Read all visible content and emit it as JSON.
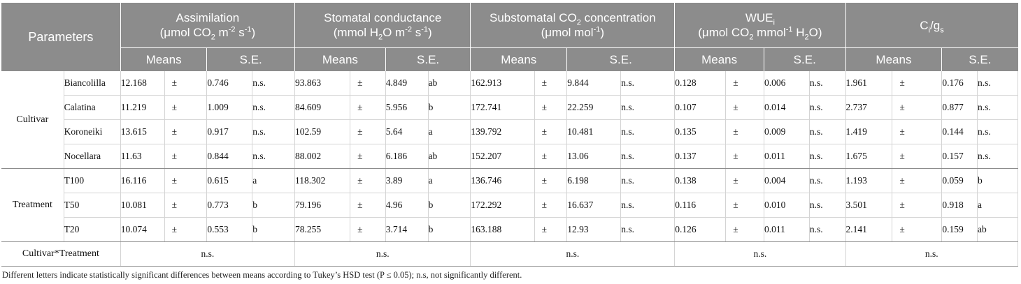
{
  "header": {
    "parameters_label": "Parameters",
    "columns": [
      {
        "title": "Assimilation",
        "unit_parts": [
          "(μmol CO",
          "2",
          " m",
          "-2",
          " s",
          "-1",
          ")"
        ]
      },
      {
        "title": "Stomatal conductance",
        "unit_parts": [
          "(mmol H",
          "2",
          "O m",
          "-2",
          " s",
          "-1",
          ")"
        ]
      },
      {
        "title": "Substomatal CO",
        "title_sub": "2",
        "title_tail": " concentration",
        "unit": "(μmol mol",
        "unit_sup": "-1",
        "unit_tail": ")"
      },
      {
        "title": "WUE",
        "title_sub": "i",
        "unit_parts": [
          "(μmol CO",
          "2",
          " mmol",
          "-1",
          " H",
          "2",
          "O)"
        ]
      },
      {
        "title": "C",
        "title_sub": "i",
        "title_mid": "/g",
        "title_sub2": "s"
      }
    ],
    "means_label": "Means",
    "se_label": "S.E."
  },
  "groups": [
    {
      "name": "Cultivar",
      "rows": [
        {
          "label": "Biancolilla",
          "values": [
            [
              "12.168",
              "±",
              "0.746",
              "n.s."
            ],
            [
              "93.863",
              "±",
              "4.849",
              "ab"
            ],
            [
              "162.913",
              "±",
              "9.844",
              "n.s."
            ],
            [
              "0.128",
              "±",
              "0.006",
              "n.s."
            ],
            [
              "1.961",
              "±",
              "0.176",
              "n.s."
            ]
          ]
        },
        {
          "label": "Calatina",
          "values": [
            [
              "11.219",
              "±",
              "1.009",
              "n.s."
            ],
            [
              "84.609",
              "±",
              "5.956",
              "b"
            ],
            [
              "172.741",
              "±",
              "22.259",
              "n.s."
            ],
            [
              "0.107",
              "±",
              "0.014",
              "n.s."
            ],
            [
              "2.737",
              "±",
              "0.877",
              "n.s."
            ]
          ]
        },
        {
          "label": "Koroneiki",
          "values": [
            [
              "13.615",
              "±",
              "0.917",
              "n.s."
            ],
            [
              "102.59",
              "±",
              "5.64",
              "a"
            ],
            [
              "139.792",
              "±",
              "10.481",
              "n.s."
            ],
            [
              "0.135",
              "±",
              "0.009",
              "n.s."
            ],
            [
              "1.419",
              "±",
              "0.144",
              "n.s."
            ]
          ]
        },
        {
          "label": "Nocellara",
          "values": [
            [
              "11.63",
              "±",
              "0.844",
              "n.s."
            ],
            [
              "88.002",
              "±",
              "6.186",
              "ab"
            ],
            [
              "152.207",
              "±",
              "13.06",
              "n.s."
            ],
            [
              "0.137",
              "±",
              "0.011",
              "n.s."
            ],
            [
              "1.675",
              "±",
              "0.157",
              "n.s."
            ]
          ]
        }
      ]
    },
    {
      "name": "Treatment",
      "rows": [
        {
          "label": "T100",
          "values": [
            [
              "16.116",
              "±",
              "0.615",
              "a"
            ],
            [
              "118.302",
              "±",
              "3.89",
              "a"
            ],
            [
              "136.746",
              "±",
              "6.198",
              "n.s."
            ],
            [
              "0.138",
              "±",
              "0.004",
              "n.s."
            ],
            [
              "1.193",
              "±",
              "0.059",
              "b"
            ]
          ]
        },
        {
          "label": "T50",
          "values": [
            [
              "10.081",
              "±",
              "0.773",
              "b"
            ],
            [
              "79.196",
              "±",
              "4.96",
              "b"
            ],
            [
              "172.292",
              "±",
              "16.637",
              "n.s."
            ],
            [
              "0.116",
              "±",
              "0.010",
              "n.s."
            ],
            [
              "3.501",
              "±",
              "0.918",
              "a"
            ]
          ]
        },
        {
          "label": "T20",
          "values": [
            [
              "10.074",
              "±",
              "0.553",
              "b"
            ],
            [
              "78.255",
              "±",
              "3.714",
              "b"
            ],
            [
              "163.188",
              "±",
              "12.93",
              "n.s."
            ],
            [
              "0.126",
              "±",
              "0.011",
              "n.s."
            ],
            [
              "2.141",
              "±",
              "0.159",
              "ab"
            ]
          ]
        }
      ]
    }
  ],
  "interaction": {
    "label": "Cultivar*Treatment",
    "values": [
      "n.s.",
      "n.s.",
      "n.s.",
      "n.s.",
      "n.s."
    ]
  },
  "footnote": "Different letters indicate statistically significant differences between means according to Tukey’s HSD test (P ≤ 0.05); n.s, not significantly different."
}
